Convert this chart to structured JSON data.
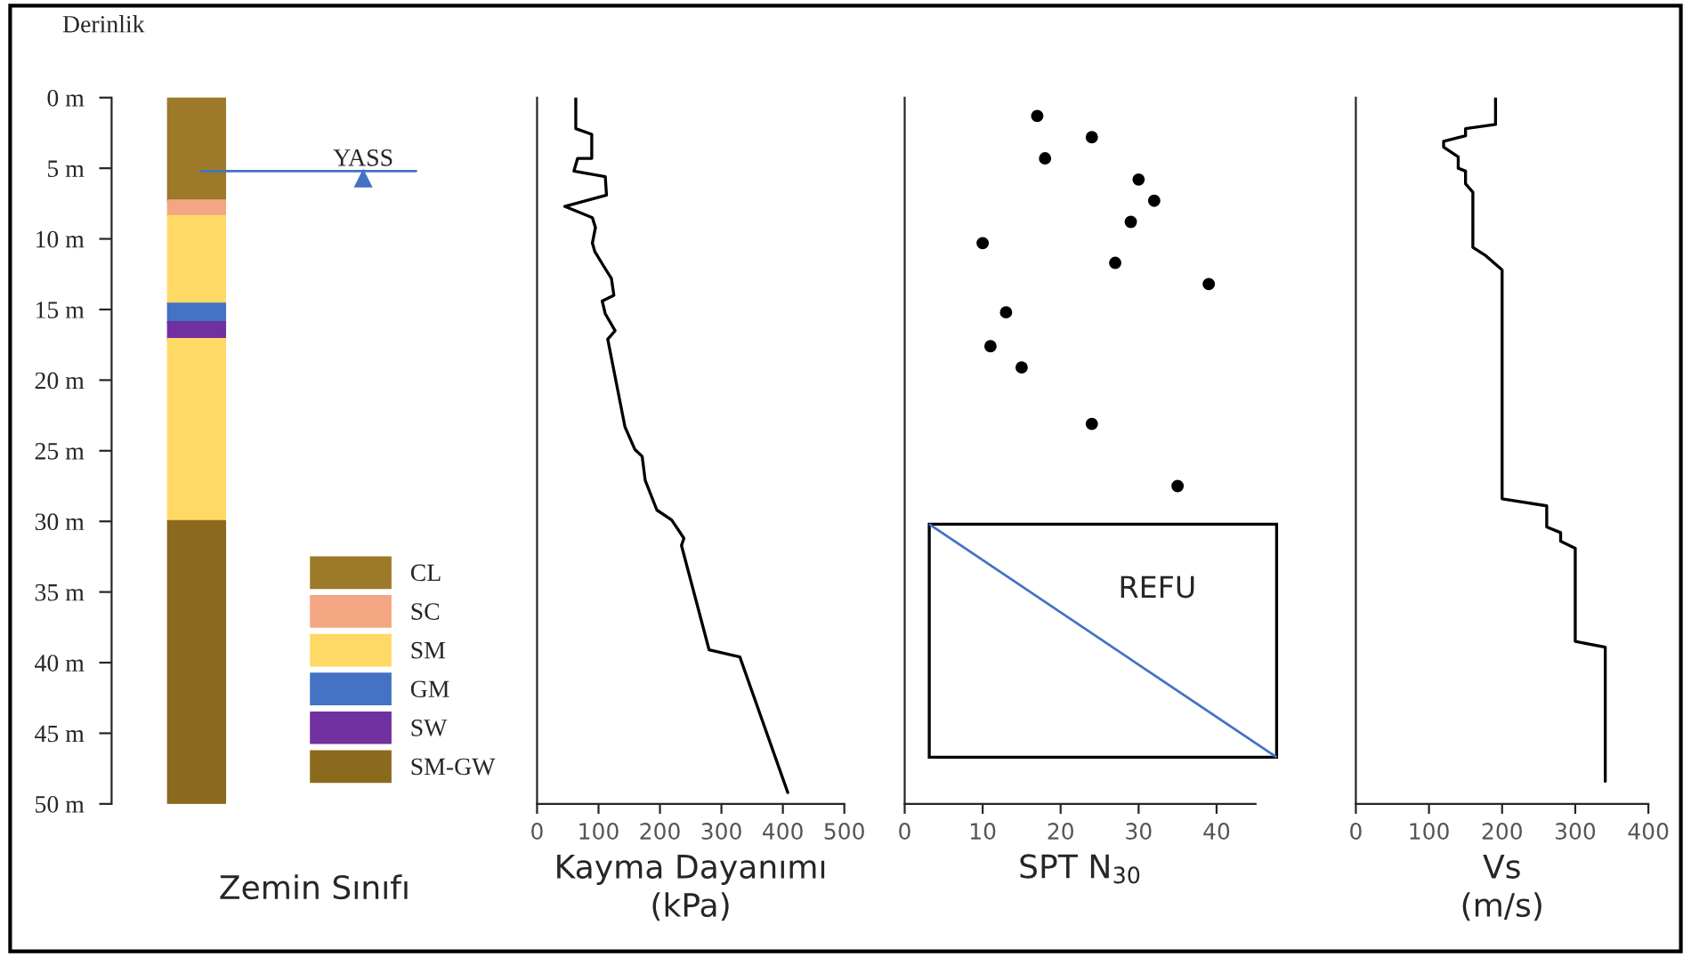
{
  "chart_data": [
    {
      "type": "bar",
      "stacked": true,
      "categories": [
        null
      ],
      "ylabel": "Derinlik",
      "xlabel": "Zemin Sınıfı",
      "series": [
        {
          "name": "CL",
          "color": "#9c7a2a",
          "values": [
            7.3
          ]
        },
        {
          "name": "SC",
          "color": "#f4a582",
          "values": [
            1.1
          ]
        },
        {
          "name": "SM",
          "color": "#ffd966",
          "values": [
            6.2
          ]
        },
        {
          "name": "GM",
          "color": "#4472c4",
          "values": [
            1.3
          ]
        },
        {
          "name": "SW",
          "color": "#7030a0",
          "values": [
            1.2
          ]
        },
        {
          "color": "#ffd966",
          "values": [
            12.9
          ]
        },
        {
          "name": "SM-GW",
          "color": "#8b6a1e",
          "values": [
            20.0
          ]
        }
      ],
      "ylim": [
        50,
        0
      ],
      "yticks": [
        {
          "value": 0,
          "label": "0 m"
        },
        {
          "value": 5,
          "label": "5 m"
        },
        {
          "value": 10,
          "label": "10 m"
        },
        {
          "value": 15,
          "label": "15 m"
        },
        {
          "value": 20,
          "label": "20 m"
        },
        {
          "value": 25,
          "label": "25 m"
        },
        {
          "value": 30,
          "label": "30 m"
        },
        {
          "value": 35,
          "label": "35 m"
        },
        {
          "value": 40,
          "label": "40 m"
        },
        {
          "value": 45,
          "label": "45 m"
        },
        {
          "value": 50,
          "label": "50 m"
        }
      ],
      "ref_lines": [
        {
          "axis": "y",
          "value": 5.2,
          "label": "YASS",
          "color": "#4472c4"
        }
      ],
      "legend": "bottom right",
      "tick_labels": "y"
    },
    {
      "type": "line",
      "xlabel": "Kayma Dayanımı\n(kPa)",
      "series": [
        {
          "color": "#000000",
          "values": [
            0,
            2.2,
            2.6,
            4.3,
            4.3,
            5.2,
            5.6,
            6.9,
            7.7,
            8.5,
            9.2,
            10.3,
            10.9,
            11.9,
            12.8,
            14.0,
            14.4,
            15.3,
            16.5,
            17.1,
            23.3,
            24.9,
            25.4,
            27.1,
            29.2,
            29.9,
            31.2,
            31.7,
            39.1,
            39.6,
            49.2
          ],
          "x": [
            63,
            63,
            89,
            89,
            66,
            60,
            111,
            113,
            45,
            90,
            95,
            90,
            94,
            108,
            121,
            125,
            106,
            111,
            127,
            115,
            143,
            159,
            171,
            176,
            195,
            219,
            239,
            235,
            280,
            330,
            408
          ]
        }
      ],
      "xlim": [
        0,
        500
      ],
      "xticks": [
        0,
        100,
        200,
        300,
        400,
        500
      ],
      "ylim": [
        50,
        0
      ],
      "tick_labels": "x",
      "line_style": "solid",
      "marker": "none"
    },
    {
      "type": "scatter",
      "xlabel": "SPT N$_{30}$",
      "series": [
        {
          "color": "#000000",
          "values": [
            1.3,
            2.8,
            4.3,
            5.8,
            7.3,
            8.8,
            10.3,
            11.7,
            13.2,
            15.2,
            17.6,
            19.1,
            23.1,
            27.5
          ],
          "x": [
            17,
            24,
            18,
            30,
            32,
            29,
            10,
            27,
            39,
            13,
            11,
            15,
            24,
            35
          ]
        }
      ],
      "bands": [
        {
          "axis": "y",
          "from": 30.2,
          "to": 46.7,
          "label": "REFU",
          "color": "#ffffff"
        }
      ],
      "xlim": [
        0,
        45
      ],
      "xticks": [
        0,
        10,
        20,
        30,
        40
      ],
      "ylim": [
        50,
        0
      ],
      "tick_labels": "x",
      "marker": "circle"
    },
    {
      "type": "line",
      "xlabel": "Vs\n(m/s)",
      "series": [
        {
          "color": "#000000",
          "values": [
            0,
            1.9,
            2.2,
            2.7,
            3.1,
            3.5,
            4.2,
            5.0,
            5.2,
            6.1,
            6.7,
            10.6,
            11.2,
            12.2,
            28.4,
            28.9,
            30.4,
            30.8,
            31.4,
            31.9,
            38.5,
            38.9,
            48.4
          ],
          "x": [
            191,
            191,
            150,
            150,
            120,
            120,
            140,
            140,
            150,
            150,
            160,
            160,
            178,
            200,
            200,
            261,
            261,
            280,
            280,
            300,
            300,
            341,
            341
          ]
        }
      ],
      "xlim": [
        0,
        400
      ],
      "xticks": [
        0,
        100,
        200,
        300,
        400
      ],
      "ylim": [
        50,
        0
      ],
      "tick_labels": "x",
      "line_style": "solid",
      "marker": "none"
    }
  ]
}
